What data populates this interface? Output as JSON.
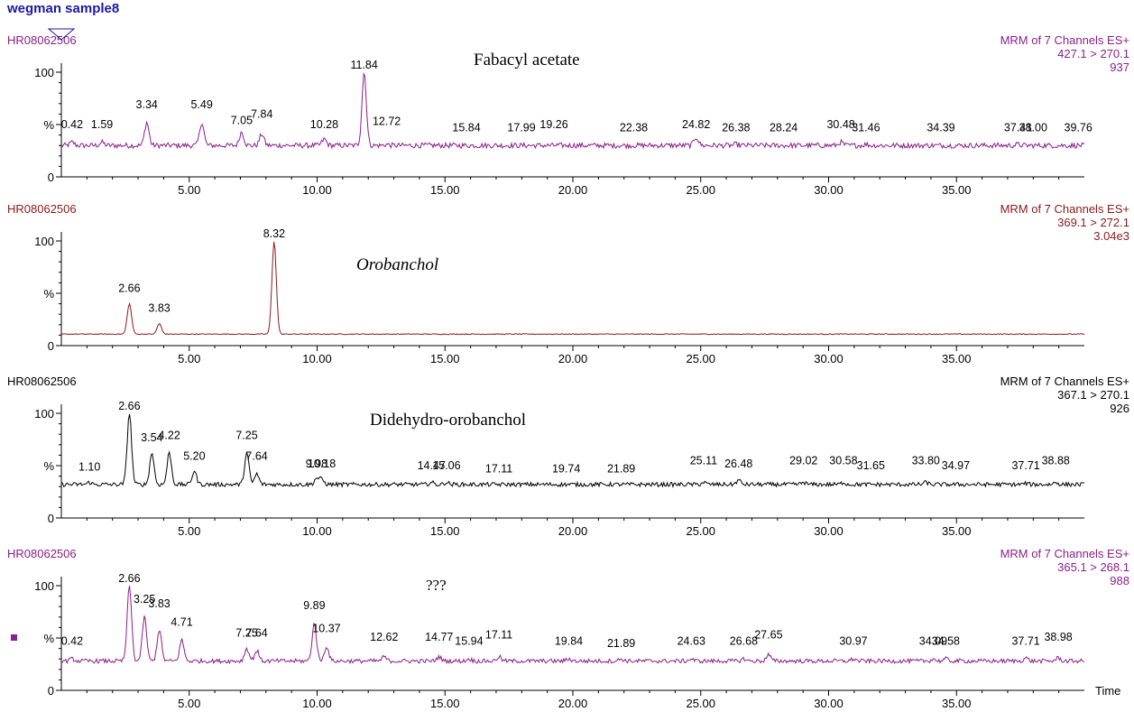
{
  "page": {
    "title": "wegman sample8"
  },
  "chart_data": {
    "type": "line",
    "x_unit_label": "Time",
    "xlim": [
      0.0,
      40.0
    ],
    "xticks": [
      "5.00",
      "10.00",
      "15.00",
      "20.00",
      "25.00",
      "30.00",
      "35.00"
    ],
    "xtick_values": [
      5,
      10,
      15,
      20,
      25,
      30,
      35
    ],
    "ylim": [
      0,
      100
    ],
    "yticks": [
      "100",
      "%",
      "0"
    ],
    "panels": [
      {
        "sample": "HR08062506",
        "annotation": "Fabacyl acetate",
        "annotation_style": "normal",
        "color": "#8b1f8b",
        "channel": "MRM of 7 Channels ES+",
        "transition": "427.1 > 270.1",
        "intensity": "937",
        "baseline": 30,
        "noise": 2.5,
        "peaks": [
          [
            0.42,
            33
          ],
          [
            1.59,
            33
          ],
          [
            3.34,
            52
          ],
          [
            5.49,
            52
          ],
          [
            7.05,
            43
          ],
          [
            7.84,
            41
          ],
          [
            10.28,
            36
          ],
          [
            11.84,
            100
          ],
          [
            12.72,
            31
          ],
          [
            15.84,
            30
          ],
          [
            17.99,
            30
          ],
          [
            19.26,
            30
          ],
          [
            22.38,
            30
          ],
          [
            24.82,
            38
          ],
          [
            26.38,
            31
          ],
          [
            28.24,
            30
          ],
          [
            30.48,
            33
          ],
          [
            31.46,
            31
          ],
          [
            34.39,
            30
          ],
          [
            37.41,
            31
          ],
          [
            38.0,
            30
          ],
          [
            39.76,
            30
          ]
        ],
        "labels": [
          {
            "t": "0.42",
            "x": 0.42,
            "y": 43
          },
          {
            "t": "1.59",
            "x": 1.59,
            "y": 43
          },
          {
            "t": "3.34",
            "x": 3.34,
            "y": 62
          },
          {
            "t": "5.49",
            "x": 5.49,
            "y": 62
          },
          {
            "t": "7.05",
            "x": 7.05,
            "y": 47
          },
          {
            "t": "7.84",
            "x": 7.84,
            "y": 53
          },
          {
            "t": "10.28",
            "x": 10.28,
            "y": 43
          },
          {
            "t": "11.84",
            "x": 11.84,
            "y": 100
          },
          {
            "t": "12.72",
            "x": 12.72,
            "y": 46
          },
          {
            "t": "15.84",
            "x": 15.84,
            "y": 40
          },
          {
            "t": "17.99",
            "x": 17.99,
            "y": 40
          },
          {
            "t": "19.26",
            "x": 19.26,
            "y": 43
          },
          {
            "t": "22.38",
            "x": 22.38,
            "y": 40
          },
          {
            "t": "24.82",
            "x": 24.82,
            "y": 43
          },
          {
            "t": "26.38",
            "x": 26.38,
            "y": 40
          },
          {
            "t": "28.24",
            "x": 28.24,
            "y": 40
          },
          {
            "t": "30.48",
            "x": 30.48,
            "y": 43
          },
          {
            "t": "31.46",
            "x": 31.46,
            "y": 40
          },
          {
            "t": "34.39",
            "x": 34.39,
            "y": 40
          },
          {
            "t": "37.41",
            "x": 37.41,
            "y": 40
          },
          {
            "t": "38.00",
            "x": 38.0,
            "y": 40
          },
          {
            "t": "39.76",
            "x": 39.76,
            "y": 40
          }
        ]
      },
      {
        "sample": "HR08062506",
        "annotation": "Orobanchol",
        "annotation_style": "italic",
        "color": "#8b1a1a",
        "channel": "MRM of 7 Channels ES+",
        "transition": "369.1 > 272.1",
        "intensity": "3.04e3",
        "baseline": 11,
        "noise": 0.4,
        "peaks": [
          [
            2.66,
            40
          ],
          [
            3.83,
            21
          ],
          [
            8.32,
            100
          ]
        ],
        "labels": [
          {
            "t": "2.66",
            "x": 2.66,
            "y": 48
          },
          {
            "t": "3.83",
            "x": 3.83,
            "y": 29
          },
          {
            "t": "8.32",
            "x": 8.32,
            "y": 100
          }
        ]
      },
      {
        "sample": "HR08062506",
        "annotation": "Didehydro-orobanchol",
        "annotation_style": "normal",
        "color": "#000000",
        "channel": "MRM of 7 Channels ES+",
        "transition": "367.1 > 270.1",
        "intensity": "926",
        "baseline": 32,
        "noise": 2.0,
        "peaks": [
          [
            1.1,
            34
          ],
          [
            2.66,
            100
          ],
          [
            3.54,
            62
          ],
          [
            4.22,
            62
          ],
          [
            5.2,
            45
          ],
          [
            7.25,
            62
          ],
          [
            7.64,
            42
          ],
          [
            9.98,
            38
          ],
          [
            10.18,
            37
          ],
          [
            14.47,
            34
          ],
          [
            15.06,
            34
          ],
          [
            17.11,
            32
          ],
          [
            19.74,
            32
          ],
          [
            21.89,
            32
          ],
          [
            25.11,
            34
          ],
          [
            26.48,
            36
          ],
          [
            29.02,
            34
          ],
          [
            30.58,
            34
          ],
          [
            31.65,
            32
          ],
          [
            33.8,
            34
          ],
          [
            34.97,
            32
          ],
          [
            37.71,
            33
          ],
          [
            38.88,
            34
          ]
        ],
        "labels": [
          {
            "t": "1.10",
            "x": 1.1,
            "y": 42
          },
          {
            "t": "2.66",
            "x": 2.66,
            "y": 100
          },
          {
            "t": "3.54",
            "x": 3.54,
            "y": 70
          },
          {
            "t": "4.22",
            "x": 4.22,
            "y": 72
          },
          {
            "t": "5.20",
            "x": 5.2,
            "y": 52
          },
          {
            "t": "7.25",
            "x": 7.25,
            "y": 72
          },
          {
            "t": "7.64",
            "x": 7.64,
            "y": 52
          },
          {
            "t": "9.98",
            "x": 9.98,
            "y": 45
          },
          {
            "t": "10.18",
            "x": 10.18,
            "y": 45
          },
          {
            "t": "14.47",
            "x": 14.47,
            "y": 43
          },
          {
            "t": "15.06",
            "x": 15.06,
            "y": 43
          },
          {
            "t": "17.11",
            "x": 17.11,
            "y": 40
          },
          {
            "t": "19.74",
            "x": 19.74,
            "y": 40
          },
          {
            "t": "21.89",
            "x": 21.89,
            "y": 40
          },
          {
            "t": "25.11",
            "x": 25.11,
            "y": 48
          },
          {
            "t": "26.48",
            "x": 26.48,
            "y": 45
          },
          {
            "t": "29.02",
            "x": 29.02,
            "y": 48
          },
          {
            "t": "30.58",
            "x": 30.58,
            "y": 48
          },
          {
            "t": "31.65",
            "x": 31.65,
            "y": 43
          },
          {
            "t": "33.80",
            "x": 33.8,
            "y": 48
          },
          {
            "t": "34.97",
            "x": 34.97,
            "y": 43
          },
          {
            "t": "37.71",
            "x": 37.71,
            "y": 43
          },
          {
            "t": "38.88",
            "x": 38.88,
            "y": 48
          }
        ]
      },
      {
        "sample": "HR08062506",
        "annotation": "???",
        "annotation_style": "normal",
        "color": "#8b1f8b",
        "channel": "MRM of 7 Channels ES+",
        "transition": "365.1 > 268.1",
        "intensity": "988",
        "baseline": 28,
        "noise": 2.0,
        "peaks": [
          [
            0.42,
            30
          ],
          [
            2.66,
            100
          ],
          [
            3.25,
            70
          ],
          [
            3.83,
            58
          ],
          [
            4.71,
            48
          ],
          [
            7.25,
            40
          ],
          [
            7.64,
            38
          ],
          [
            9.89,
            64
          ],
          [
            10.37,
            42
          ],
          [
            12.62,
            32
          ],
          [
            14.77,
            32
          ],
          [
            15.94,
            30
          ],
          [
            17.11,
            32
          ],
          [
            19.84,
            30
          ],
          [
            21.89,
            30
          ],
          [
            24.63,
            30
          ],
          [
            26.68,
            30
          ],
          [
            27.65,
            34
          ],
          [
            30.97,
            30
          ],
          [
            34.09,
            30
          ],
          [
            34.58,
            30
          ],
          [
            37.71,
            31
          ],
          [
            38.98,
            31
          ]
        ],
        "labels": [
          {
            "t": "0.42",
            "x": 0.42,
            "y": 40
          },
          {
            "t": "2.66",
            "x": 2.66,
            "y": 100
          },
          {
            "t": "3.25",
            "x": 3.25,
            "y": 80
          },
          {
            "t": "3.83",
            "x": 3.83,
            "y": 76
          },
          {
            "t": "4.71",
            "x": 4.71,
            "y": 58
          },
          {
            "t": "7.25",
            "x": 7.25,
            "y": 48
          },
          {
            "t": "7.64",
            "x": 7.64,
            "y": 48
          },
          {
            "t": "9.89",
            "x": 9.89,
            "y": 74
          },
          {
            "t": "10.37",
            "x": 10.37,
            "y": 52
          },
          {
            "t": "12.62",
            "x": 12.62,
            "y": 44
          },
          {
            "t": "14.77",
            "x": 14.77,
            "y": 44
          },
          {
            "t": "15.94",
            "x": 15.94,
            "y": 40
          },
          {
            "t": "17.11",
            "x": 17.11,
            "y": 46
          },
          {
            "t": "19.84",
            "x": 19.84,
            "y": 40
          },
          {
            "t": "21.89",
            "x": 21.89,
            "y": 38
          },
          {
            "t": "24.63",
            "x": 24.63,
            "y": 40
          },
          {
            "t": "26.68",
            "x": 26.68,
            "y": 40
          },
          {
            "t": "27.65",
            "x": 27.65,
            "y": 46
          },
          {
            "t": "30.97",
            "x": 30.97,
            "y": 40
          },
          {
            "t": "34.09",
            "x": 34.09,
            "y": 40
          },
          {
            "t": "34.58",
            "x": 34.58,
            "y": 40
          },
          {
            "t": "37.71",
            "x": 37.71,
            "y": 40
          },
          {
            "t": "38.98",
            "x": 38.98,
            "y": 44
          }
        ]
      }
    ]
  }
}
